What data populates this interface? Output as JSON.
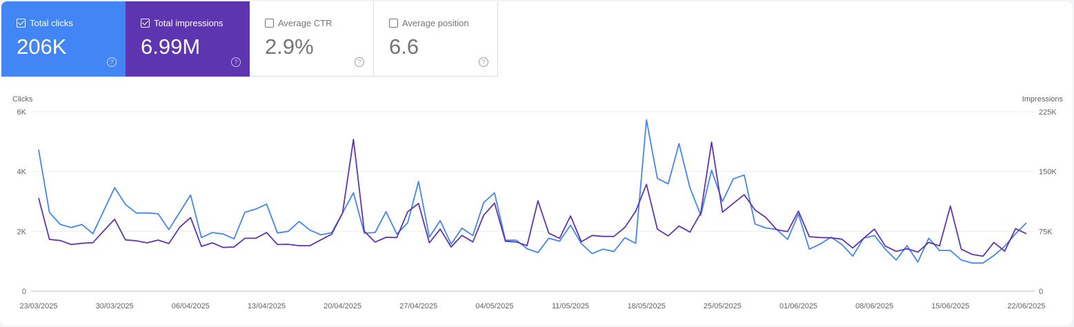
{
  "metrics": [
    {
      "label": "Total clicks",
      "value": "206K",
      "checked": true,
      "color": "#4285f4"
    },
    {
      "label": "Total impressions",
      "value": "6.99M",
      "checked": true,
      "color": "#5e35b1"
    },
    {
      "label": "Average CTR",
      "value": "2.9%",
      "checked": false
    },
    {
      "label": "Average position",
      "value": "6.6",
      "checked": false
    }
  ],
  "help_icon": "?",
  "chart_data": {
    "type": "line",
    "left_axis_title": "Clicks",
    "right_axis_title": "Impressions",
    "left_ticks": [
      "0",
      "2K",
      "4K",
      "6K"
    ],
    "right_ticks": [
      "0",
      "75K",
      "150K",
      "225K"
    ],
    "ylim_left": [
      0,
      6000
    ],
    "ylim_right": [
      0,
      225000
    ],
    "x_range": [
      "23/03/2025",
      "22/06/2025"
    ],
    "x_tick_labels": [
      "23/03/2025",
      "30/03/2025",
      "06/04/2025",
      "13/04/2025",
      "20/04/2025",
      "27/04/2025",
      "04/05/2025",
      "11/05/2025",
      "18/05/2025",
      "25/05/2025",
      "01/06/2025",
      "08/06/2025",
      "15/06/2025",
      "22/06/2025"
    ],
    "grid": true,
    "series": [
      {
        "name": "Clicks",
        "axis": "left",
        "color": "#4285f4",
        "values": [
          4730,
          2630,
          2230,
          2130,
          2230,
          1920,
          2690,
          3460,
          2900,
          2615,
          2615,
          2590,
          2060,
          2640,
          3215,
          1790,
          1960,
          1910,
          1750,
          2640,
          2745,
          2910,
          1945,
          2000,
          2330,
          2040,
          1885,
          1955,
          2615,
          3290,
          1940,
          1960,
          2655,
          1910,
          2285,
          3670,
          1810,
          2360,
          1575,
          2105,
          1860,
          2960,
          3285,
          1705,
          1705,
          1420,
          1290,
          1770,
          1670,
          2205,
          1590,
          1255,
          1405,
          1325,
          1785,
          1600,
          5730,
          3770,
          3590,
          4935,
          3460,
          2540,
          4040,
          3000,
          3755,
          3885,
          2245,
          2115,
          2060,
          1730,
          2575,
          1405,
          1575,
          1805,
          1560,
          1170,
          1770,
          1860,
          1405,
          1040,
          1520,
          975,
          1770,
          1360,
          1360,
          1040,
          940,
          940,
          1190,
          1500,
          1920,
          2285
        ]
      },
      {
        "name": "Impressions",
        "axis": "right",
        "color": "#5e35b1",
        "values": [
          116800,
          64900,
          63400,
          58500,
          60000,
          60800,
          75600,
          90200,
          64300,
          63200,
          60600,
          64000,
          59700,
          80200,
          92300,
          56200,
          60600,
          54800,
          55400,
          66300,
          66300,
          73500,
          58500,
          58800,
          57000,
          57000,
          64300,
          71500,
          98000,
          190300,
          75000,
          61500,
          67500,
          67200,
          99500,
          110000,
          60600,
          77800,
          55400,
          69800,
          61700,
          95200,
          110400,
          62600,
          61700,
          57000,
          113300,
          72700,
          66300,
          94300,
          62000,
          69800,
          68600,
          68600,
          79900,
          100000,
          134000,
          77800,
          69200,
          81600,
          74100,
          98000,
          186900,
          99000,
          110100,
          121000,
          101800,
          92300,
          77000,
          74700,
          100400,
          68300,
          67200,
          66900,
          65200,
          54200,
          66300,
          77800,
          56500,
          49900,
          53100,
          49000,
          61100,
          56800,
          106700,
          52500,
          46100,
          43800,
          61100,
          50200,
          78400,
          72000
        ]
      }
    ]
  }
}
